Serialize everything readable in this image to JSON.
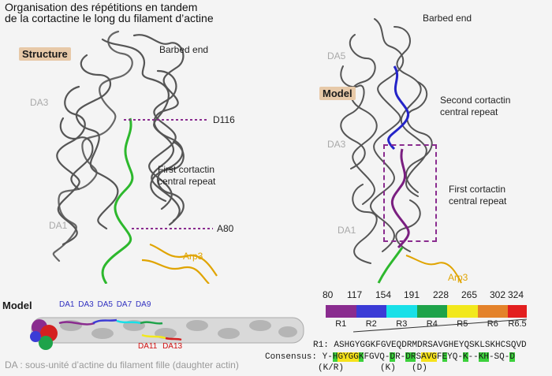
{
  "title_lines": [
    "Organisation des répétitions en tandem",
    "de la cortactine le long du filament d’actine"
  ],
  "left_panel": {
    "tag": "Structure",
    "barbed_end": "Barbed end",
    "da3": "DA3",
    "da1": "DA1",
    "d116": "D116",
    "a80": "A80",
    "first_repeat": [
      "First cortactin",
      "central repeat"
    ],
    "arp3": "Arp3"
  },
  "right_panel": {
    "tag": "Model",
    "barbed_end": "Barbed end",
    "da5": "DA5",
    "da3": "DA3",
    "da1": "DA1",
    "second_repeat": [
      "Second cortactin",
      "central repeat"
    ],
    "first_repeat": [
      "First cortactin",
      "central repeat"
    ],
    "arp3": "Arp3"
  },
  "bottom_model": {
    "title": "Model",
    "da_top": [
      "DA1",
      "DA3",
      "DA5",
      "DA7",
      "DA9"
    ],
    "da_bottom": [
      "DA11",
      "DA13"
    ]
  },
  "legend": {
    "boundaries": [
      "80",
      "117",
      "154",
      "191",
      "228",
      "265",
      "302",
      "324"
    ],
    "segments": [
      {
        "label": "R1",
        "color": "#8a2c8f"
      },
      {
        "label": "R2",
        "color": "#3b3bd6"
      },
      {
        "label": "R3",
        "color": "#18e0e8"
      },
      {
        "label": "R4",
        "color": "#1ea34a"
      },
      {
        "label": "R5",
        "color": "#f2e81c"
      },
      {
        "label": "R6",
        "color": "#e4822a"
      },
      {
        "label": "R6.5",
        "color": "#e31f1f"
      }
    ]
  },
  "sequence": {
    "r1_label": "R1:",
    "r1_seq": "ASHGYGGKFGVEQDRMDRSAVGHEYQSKLSKHCSQVD",
    "consensus_label": "Consensus:",
    "consensus_parts": [
      {
        "t": "Y-",
        "c": ""
      },
      {
        "t": "H",
        "c": "g"
      },
      {
        "t": "GYGG",
        "c": "y"
      },
      {
        "t": "K",
        "c": "g"
      },
      {
        "t": "FGVQ-",
        "c": ""
      },
      {
        "t": "D",
        "c": "g"
      },
      {
        "t": "R-",
        "c": ""
      },
      {
        "t": "DR",
        "c": "g"
      },
      {
        "t": "S",
        "c": ""
      },
      {
        "t": "AVG",
        "c": "y"
      },
      {
        "t": "F",
        "c": ""
      },
      {
        "t": "E",
        "c": "g"
      },
      {
        "t": "YQ-",
        "c": ""
      },
      {
        "t": "K",
        "c": "g"
      },
      {
        "t": "--",
        "c": ""
      },
      {
        "t": "KH",
        "c": "g"
      },
      {
        "t": "-SQ-",
        "c": ""
      },
      {
        "t": "D",
        "c": "g"
      }
    ],
    "variants": [
      "(K/R)",
      "(K)",
      "(D)"
    ]
  },
  "footnote": "DA : sous-unité d’actine du filament fille (daughter actin)"
}
